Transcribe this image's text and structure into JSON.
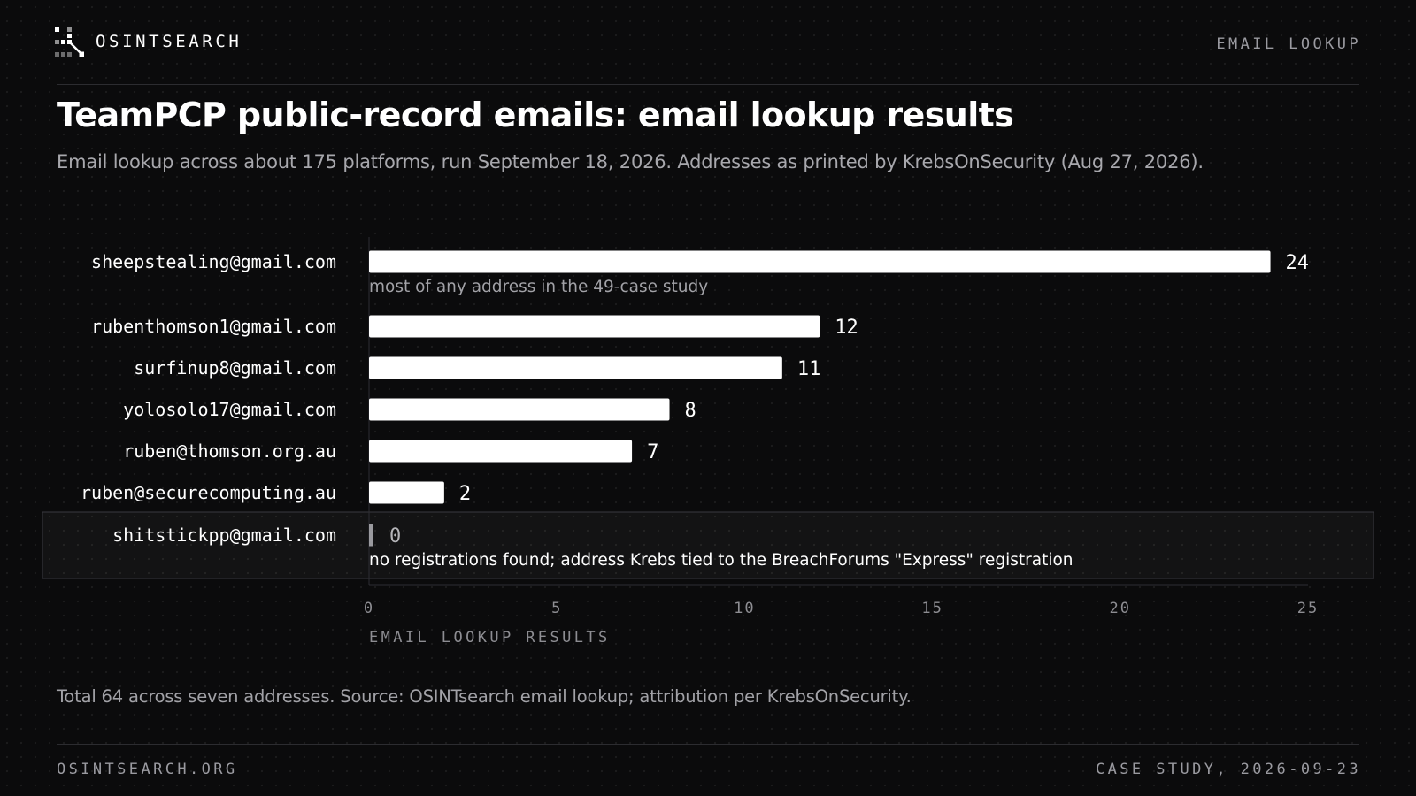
{
  "header": {
    "brand_name": "OSINTSEARCH",
    "kicker": "EMAIL LOOKUP"
  },
  "icons": {
    "brand": "network-node-icon"
  },
  "colors": {
    "background": "#0b0b0c",
    "bar": "#ffffff",
    "zero_bar": "#9a9a9f",
    "muted_text": "#a2a2a7",
    "highlight_border": "#3a3a40"
  },
  "chart_data": {
    "type": "bar",
    "orientation": "horizontal",
    "title": "TeamPCP public-record emails: email lookup results",
    "subtitle": "Email lookup across about 175 platforms, run September 18, 2026. Addresses as printed by KrebsOnSecurity (Aug 27, 2026).",
    "xlabel": "EMAIL LOOKUP RESULTS",
    "ylabel": "",
    "xlim": [
      0,
      25
    ],
    "x_ticks": [
      0,
      5,
      10,
      15,
      20,
      25
    ],
    "grid": false,
    "categories": [
      "sheepstealing@gmail.com",
      "rubenthomson1@gmail.com",
      "surfinup8@gmail.com",
      "yolosolo17@gmail.com",
      "ruben@thomson.org.au",
      "ruben@securecomputing.au",
      "shitstickpp@gmail.com"
    ],
    "values": [
      24,
      12,
      11,
      8,
      7,
      2,
      0
    ],
    "highlighted": "shitstickpp@gmail.com",
    "annotations": [
      {
        "category": "sheepstealing@gmail.com",
        "text": "most of any address in the 49-case study"
      },
      {
        "category": "shitstickpp@gmail.com",
        "text": "no registrations found; address Krebs tied to the BreachForums \"Express\" registration"
      }
    ]
  },
  "footnote": "Total 64 across seven addresses. Source: OSINTsearch email lookup; attribution per KrebsOnSecurity.",
  "footer": {
    "site": "OSINTSEARCH.ORG",
    "date_label": "CASE STUDY, 2026-09-23"
  }
}
